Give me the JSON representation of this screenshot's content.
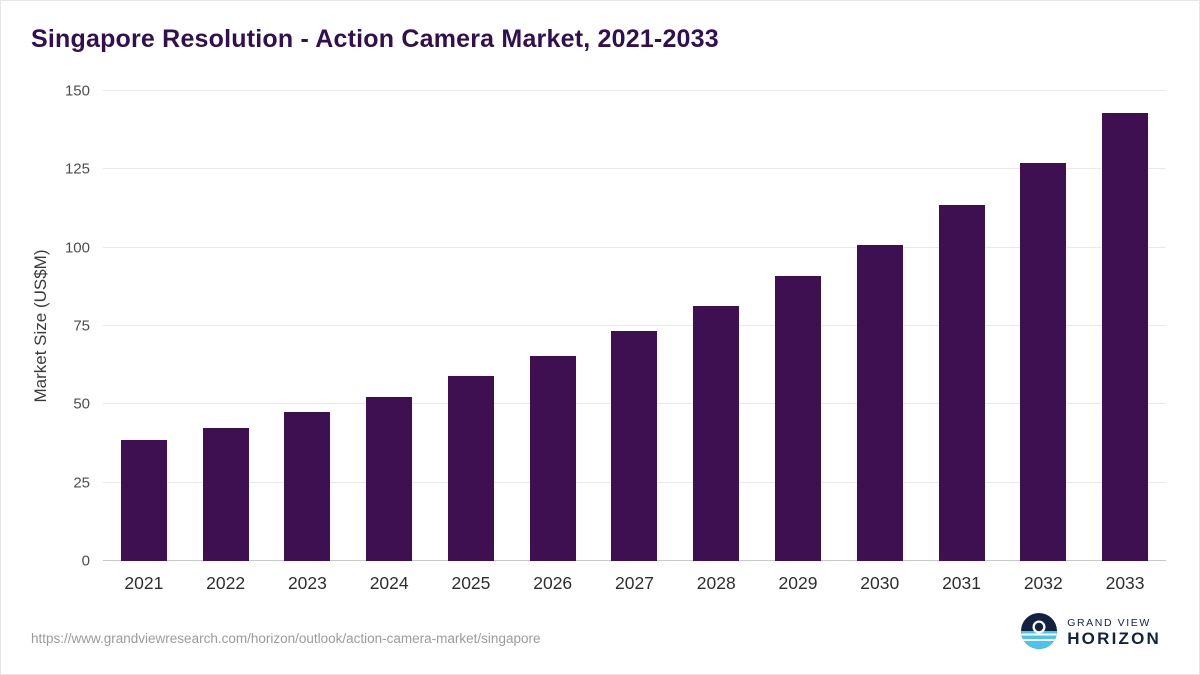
{
  "title": "Singapore Resolution - Action Camera Market, 2021-2033",
  "source_url": "https://www.grandviewresearch.com/horizon/outlook/action-camera-market/singapore",
  "logo": {
    "line1": "GRAND VIEW",
    "line2": "HORIZON",
    "icon": "horizon-sun-icon",
    "navy": "#13233f",
    "blue": "#49c4ec"
  },
  "colors": {
    "bar": "#3e1051",
    "title_text": "#321050",
    "gridline": "#e9e9e9",
    "axis_text": "#4d4d4d",
    "source_text": "#9b9b9b"
  },
  "chart_data": {
    "type": "bar",
    "title": "Singapore Resolution - Action Camera Market, 2021-2033",
    "categories": [
      "2021",
      "2022",
      "2023",
      "2024",
      "2025",
      "2026",
      "2027",
      "2028",
      "2029",
      "2030",
      "2031",
      "2032",
      "2033"
    ],
    "values": [
      38.5,
      42.5,
      47.5,
      52.5,
      59,
      65.5,
      73.5,
      81.5,
      91,
      101,
      113.5,
      127,
      143
    ],
    "xlabel": "",
    "ylabel": "Market Size (US$M)",
    "ylim": [
      0,
      150
    ],
    "yticks": [
      0,
      25,
      50,
      75,
      100,
      125,
      150
    ],
    "grid": "horizontal",
    "legend": "none",
    "bar_color": "#3e1051"
  }
}
